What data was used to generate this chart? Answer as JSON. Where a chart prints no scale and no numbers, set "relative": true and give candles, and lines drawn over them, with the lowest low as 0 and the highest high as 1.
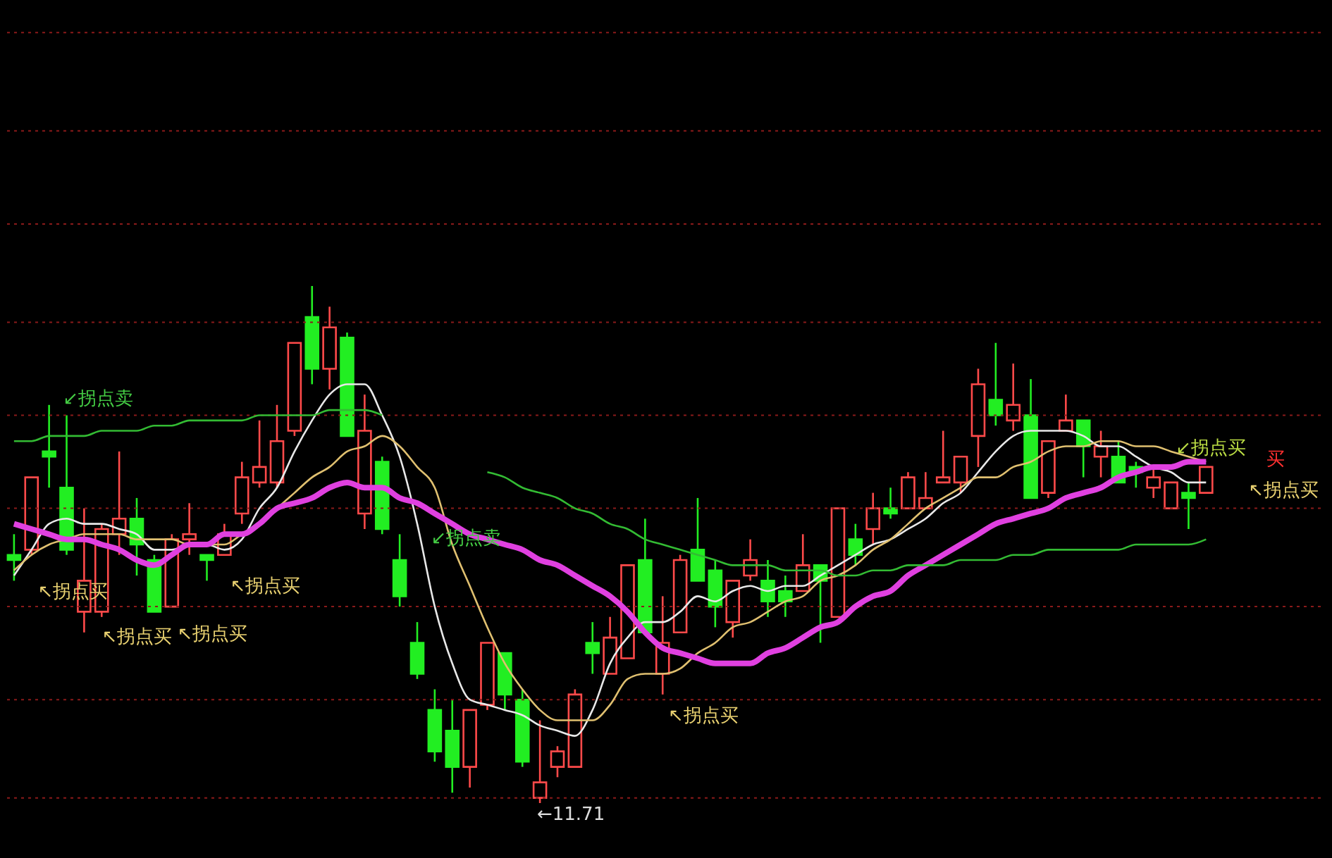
{
  "chart_data": {
    "type": "candlestick",
    "relative": true,
    "categories": [
      null,
      null,
      null,
      null,
      null,
      null,
      null,
      null,
      null,
      null,
      null,
      null,
      null,
      null,
      null,
      null,
      null,
      null,
      null,
      null,
      null,
      null,
      null,
      null,
      null,
      null,
      null,
      null,
      null,
      null,
      null,
      null,
      null,
      null,
      null,
      null,
      null,
      null,
      null,
      null,
      null,
      null,
      null,
      null,
      null,
      null,
      null,
      null,
      null,
      null,
      null,
      null,
      null,
      null,
      null,
      null,
      null,
      null,
      null,
      null,
      null,
      null,
      null,
      null,
      null,
      null,
      null,
      null,
      null
    ],
    "ohlc": [
      [
        0.48,
        0.52,
        0.43,
        0.47
      ],
      [
        0.49,
        0.63,
        0.48,
        0.63
      ],
      [
        0.68,
        0.77,
        0.61,
        0.67
      ],
      [
        0.61,
        0.75,
        0.48,
        0.49
      ],
      [
        0.37,
        0.57,
        0.33,
        0.43
      ],
      [
        0.37,
        0.54,
        0.36,
        0.53
      ],
      [
        0.52,
        0.68,
        0.48,
        0.55
      ],
      [
        0.55,
        0.59,
        0.44,
        0.5
      ],
      [
        0.47,
        0.48,
        0.37,
        0.37
      ],
      [
        0.38,
        0.52,
        0.38,
        0.51
      ],
      [
        0.51,
        0.58,
        0.48,
        0.52
      ],
      [
        0.48,
        0.48,
        0.43,
        0.47
      ],
      [
        0.48,
        0.54,
        0.48,
        0.52
      ],
      [
        0.56,
        0.66,
        0.54,
        0.63
      ],
      [
        0.62,
        0.74,
        0.61,
        0.65
      ],
      [
        0.62,
        0.77,
        0.61,
        0.7
      ],
      [
        0.72,
        0.89,
        0.71,
        0.89
      ],
      [
        0.94,
        1,
        0.81,
        0.84
      ],
      [
        0.84,
        0.96,
        0.8,
        0.92
      ],
      [
        0.9,
        0.91,
        0.71,
        0.71
      ],
      [
        0.56,
        0.79,
        0.53,
        0.72
      ],
      [
        0.66,
        0.67,
        0.52,
        0.53
      ],
      [
        0.47,
        0.52,
        0.38,
        0.4
      ],
      [
        0.31,
        0.35,
        0.24,
        0.25
      ],
      [
        0.18,
        0.22,
        0.08,
        0.1
      ],
      [
        0.14,
        0.2,
        0.02,
        0.07
      ],
      [
        0.07,
        0.18,
        0.03,
        0.18
      ],
      [
        0.19,
        0.31,
        0.18,
        0.31
      ],
      [
        0.29,
        0.29,
        0.18,
        0.21
      ],
      [
        0.2,
        0.22,
        0.07,
        0.08
      ],
      [
        0.01,
        0.16,
        0,
        0.04
      ],
      [
        0.07,
        0.11,
        0.05,
        0.1
      ],
      [
        0.07,
        0.22,
        0.07,
        0.21
      ],
      [
        0.31,
        0.35,
        0.25,
        0.29
      ],
      [
        0.25,
        0.36,
        0.25,
        0.32
      ],
      [
        0.28,
        0.46,
        0.28,
        0.46
      ],
      [
        0.47,
        0.55,
        0.33,
        0.33
      ],
      [
        0.25,
        0.4,
        0.21,
        0.31
      ],
      [
        0.33,
        0.48,
        0.33,
        0.47
      ],
      [
        0.49,
        0.59,
        0.43,
        0.43
      ],
      [
        0.45,
        0.47,
        0.34,
        0.38
      ],
      [
        0.35,
        0.43,
        0.32,
        0.43
      ],
      [
        0.44,
        0.51,
        0.43,
        0.47
      ],
      [
        0.43,
        0.47,
        0.36,
        0.39
      ],
      [
        0.41,
        0.44,
        0.36,
        0.39
      ],
      [
        0.41,
        0.52,
        0.41,
        0.46
      ],
      [
        0.46,
        0.46,
        0.31,
        0.43
      ],
      [
        0.36,
        0.57,
        0.36,
        0.57
      ],
      [
        0.51,
        0.54,
        0.46,
        0.48
      ],
      [
        0.53,
        0.6,
        0.5,
        0.57
      ],
      [
        0.57,
        0.61,
        0.55,
        0.56
      ],
      [
        0.57,
        0.64,
        0.57,
        0.63
      ],
      [
        0.57,
        0.64,
        0.57,
        0.59
      ],
      [
        0.62,
        0.72,
        0.62,
        0.63
      ],
      [
        0.62,
        0.67,
        0.6,
        0.67
      ],
      [
        0.71,
        0.84,
        0.65,
        0.81
      ],
      [
        0.78,
        0.89,
        0.73,
        0.75
      ],
      [
        0.74,
        0.85,
        0.72,
        0.77
      ],
      [
        0.75,
        0.82,
        0.59,
        0.59
      ],
      [
        0.6,
        0.7,
        0.59,
        0.7
      ],
      [
        0.72,
        0.79,
        0.72,
        0.74
      ],
      [
        0.74,
        0.74,
        0.63,
        0.69
      ],
      [
        0.67,
        0.72,
        0.63,
        0.69
      ],
      [
        0.67,
        0.7,
        0.62,
        0.62
      ],
      [
        0.65,
        0.66,
        0.61,
        0.64
      ],
      [
        0.61,
        0.65,
        0.59,
        0.63
      ],
      [
        0.57,
        0.62,
        0.57,
        0.62
      ],
      [
        0.6,
        0.62,
        0.53,
        0.59
      ],
      [
        0.6,
        0.65,
        0.6,
        0.65
      ]
    ],
    "colors": [
      "#22ee22",
      "#ff4a4a",
      "#22ee22",
      "#22ee22",
      "#ff4a4a",
      "#ff4a4a",
      "#ff4a4a",
      "#22ee22",
      "#22ee22",
      "#ff4a4a",
      "#ff4a4a",
      "#22ee22",
      "#ff4a4a",
      "#ff4a4a",
      "#ff4a4a",
      "#ff4a4a",
      "#ff4a4a",
      "#22ee22",
      "#ff4a4a",
      "#22ee22",
      "#ff4a4a",
      "#22ee22",
      "#22ee22",
      "#22ee22",
      "#22ee22",
      "#22ee22",
      "#ff4a4a",
      "#ff4a4a",
      "#22ee22",
      "#22ee22",
      "#ff4a4a",
      "#ff4a4a",
      "#ff4a4a",
      "#22ee22",
      "#ff4a4a",
      "#ff4a4a",
      "#22ee22",
      "#ff4a4a",
      "#ff4a4a",
      "#22ee22",
      "#22ee22",
      "#ff4a4a",
      "#ff4a4a",
      "#22ee22",
      "#22ee22",
      "#ff4a4a",
      "#22ee22",
      "#ff4a4a",
      "#22ee22",
      "#ff4a4a",
      "#22ee22",
      "#ff4a4a",
      "#ff4a4a",
      "#ff4a4a",
      "#ff4a4a",
      "#ff4a4a",
      "#22ee22",
      "#ff4a4a",
      "#22ee22",
      "#ff4a4a",
      "#ff4a4a",
      "#22ee22",
      "#ff4a4a",
      "#22ee22",
      "#22ee22",
      "#ff4a4a",
      "#ff4a4a",
      "#22ee22",
      "#ff4a4a"
    ],
    "series": [
      {
        "type": "line",
        "color": "#e8e8e8",
        "values": [
          0.44,
          0.49,
          0.54,
          0.55,
          0.54,
          0.54,
          0.53,
          0.52,
          0.49,
          0.49,
          0.5,
          0.5,
          0.49,
          0.51,
          0.57,
          0.61,
          0.68,
          0.74,
          0.79,
          0.81,
          0.81,
          0.75,
          0.67,
          0.54,
          0.38,
          0.27,
          0.2,
          0.19,
          0.18,
          0.17,
          0.15,
          0.14,
          0.13,
          0.18,
          0.27,
          0.32,
          0.35,
          0.35,
          0.37,
          0.4,
          0.39,
          0.41,
          0.42,
          0.41,
          0.42,
          0.42,
          0.44,
          0.46,
          0.48,
          0.5,
          0.51,
          0.53,
          0.55,
          0.58,
          0.6,
          0.64,
          0.68,
          0.71,
          0.72,
          0.72,
          0.72,
          0.71,
          0.69,
          0.69,
          0.67,
          0.65,
          0.64,
          0.62,
          0.62
        ]
      },
      {
        "type": "line",
        "color": "#e0c070",
        "values": [
          0.45,
          0.48,
          0.5,
          0.51,
          0.52,
          0.52,
          0.52,
          0.51,
          0.51,
          0.51,
          0.5,
          0.5,
          0.5,
          0.52,
          0.54,
          0.57,
          0.6,
          0.63,
          0.65,
          0.68,
          0.69,
          0.71,
          0.69,
          0.65,
          0.61,
          0.5,
          0.42,
          0.34,
          0.27,
          0.22,
          0.18,
          0.16,
          0.16,
          0.16,
          0.19,
          0.24,
          0.25,
          0.25,
          0.26,
          0.29,
          0.31,
          0.34,
          0.35,
          0.37,
          0.39,
          0.4,
          0.43,
          0.44,
          0.46,
          0.49,
          0.51,
          0.54,
          0.57,
          0.59,
          0.61,
          0.63,
          0.63,
          0.65,
          0.66,
          0.68,
          0.69,
          0.69,
          0.7,
          0.7,
          0.69,
          0.69,
          0.68,
          0.67,
          0.66
        ]
      },
      {
        "type": "line",
        "color": "#e040e0",
        "values": [
          0.54,
          0.53,
          0.52,
          0.51,
          0.51,
          0.5,
          0.49,
          0.47,
          0.46,
          0.48,
          0.5,
          0.5,
          0.52,
          0.52,
          0.54,
          0.57,
          0.58,
          0.59,
          0.61,
          0.62,
          0.61,
          0.61,
          0.59,
          0.58,
          0.56,
          0.54,
          0.52,
          0.51,
          0.5,
          0.49,
          0.47,
          0.46,
          0.44,
          0.42,
          0.4,
          0.37,
          0.33,
          0.3,
          0.29,
          0.28,
          0.27,
          0.27,
          0.27,
          0.29,
          0.3,
          0.32,
          0.34,
          0.35,
          0.38,
          0.4,
          0.41,
          0.44,
          0.46,
          0.48,
          0.5,
          0.52,
          0.54,
          0.55,
          0.56,
          0.57,
          0.59,
          0.6,
          0.61,
          0.63,
          0.64,
          0.65,
          0.65,
          0.66,
          0.66
        ]
      },
      {
        "type": "line",
        "color": "#33bb33",
        "values": [
          0.7,
          0.7,
          0.71,
          0.71,
          0.71,
          0.72,
          0.72,
          0.72,
          0.73,
          0.73,
          0.74,
          0.74,
          0.74,
          0.74,
          0.75,
          0.75,
          0.75,
          0.75,
          0.76,
          0.76,
          0.76,
          0.75,
          null,
          null,
          null,
          null,
          null,
          0.64,
          0.63,
          0.61,
          0.6,
          0.59,
          0.57,
          0.56,
          0.54,
          0.53,
          0.51,
          0.5,
          0.49,
          0.48,
          0.47,
          0.46,
          0.46,
          0.46,
          0.45,
          0.45,
          0.45,
          0.44,
          0.44,
          0.45,
          0.45,
          0.46,
          0.46,
          0.46,
          0.47,
          0.47,
          0.47,
          0.48,
          0.48,
          0.49,
          0.49,
          0.49,
          0.49,
          0.49,
          0.5,
          0.5,
          0.5,
          0.5,
          0.51
        ]
      }
    ],
    "ref_lines": [
      {
        "axis": "y",
        "value": 0.01,
        "color": "#8a1a1a",
        "line_style": "dotted"
      },
      {
        "axis": "y",
        "value": 0.2,
        "color": "#8a1a1a",
        "line_style": "dotted"
      },
      {
        "axis": "y",
        "value": 0.38,
        "color": "#8a1a1a",
        "line_style": "dotted"
      },
      {
        "axis": "y",
        "value": 0.57,
        "color": "#8a1a1a",
        "line_style": "dotted"
      },
      {
        "axis": "y",
        "value": 0.75,
        "color": "#8a1a1a",
        "line_style": "dotted"
      },
      {
        "axis": "y",
        "value": 0.93,
        "color": "#8a1a1a",
        "line_style": "dotted"
      },
      {
        "axis": "y",
        "value": 1.12,
        "color": "#8a1a1a",
        "line_style": "dotted"
      },
      {
        "axis": "y",
        "value": 1.3,
        "color": "#8a1a1a",
        "line_style": "dotted"
      },
      {
        "axis": "y",
        "value": 1.49,
        "color": "#8a1a1a",
        "line_style": "dotted"
      }
    ],
    "annotations": [
      "↙拐点卖",
      "↖拐点买",
      "↖拐点买",
      "↖拐点买",
      "↖拐点买",
      "↙拐点卖",
      "↖拐点买",
      "↙拐点买",
      "↖拐点买",
      "买",
      "←11.71"
    ]
  }
}
